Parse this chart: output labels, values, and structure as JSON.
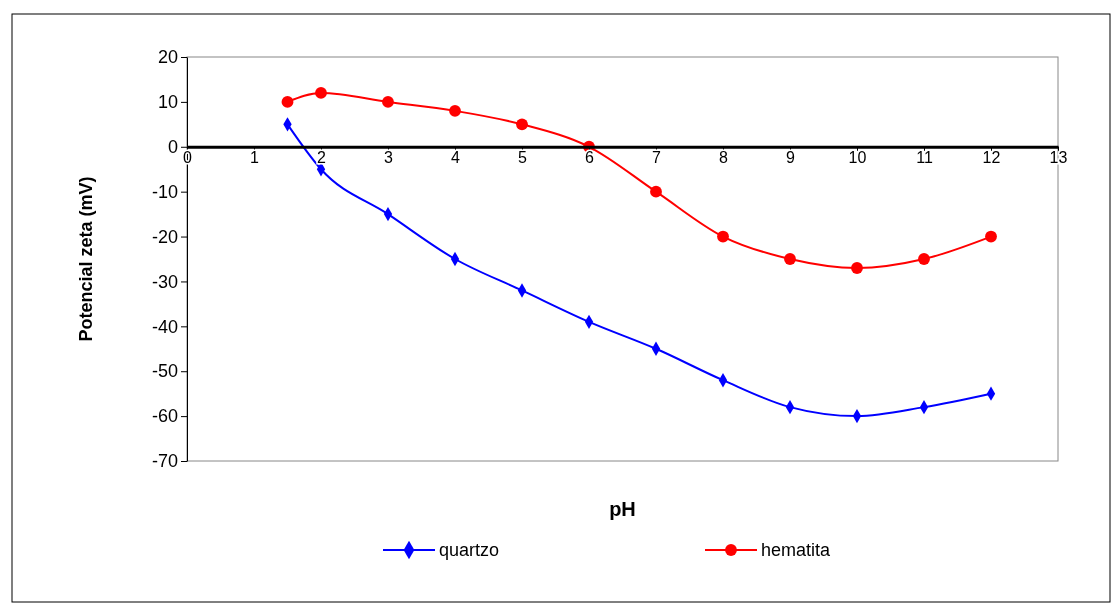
{
  "chart_data": {
    "type": "line",
    "xlabel": "pH",
    "ylabel": "Potencial zeta (mV)",
    "xlim": [
      0,
      13
    ],
    "xticks": [
      0,
      1,
      2,
      3,
      4,
      5,
      6,
      7,
      8,
      9,
      10,
      11,
      12,
      13
    ],
    "ylim": [
      -70,
      20
    ],
    "yticks": [
      -70,
      -60,
      -50,
      -40,
      -30,
      -20,
      -10,
      0,
      10,
      20
    ],
    "grid": false,
    "legend": "bottom",
    "line_style": "solid",
    "series": [
      {
        "name": "quartzo",
        "color": "#0000ff",
        "marker": "diamond",
        "x": [
          1.5,
          2,
          3,
          4,
          5,
          6,
          7,
          8,
          9,
          10,
          11,
          12
        ],
        "values": [
          5,
          -5,
          -15,
          -25,
          -32,
          -39,
          -45,
          -52,
          -58,
          -60,
          -58,
          -55
        ]
      },
      {
        "name": "hematita",
        "color": "#ff0000",
        "marker": "circle",
        "x": [
          1.5,
          2,
          3,
          4,
          5,
          6,
          7,
          8,
          9,
          10,
          11,
          12
        ],
        "values": [
          10,
          12,
          10,
          8,
          5,
          0,
          -10,
          -20,
          -25,
          -27,
          -25,
          -20
        ]
      }
    ]
  }
}
